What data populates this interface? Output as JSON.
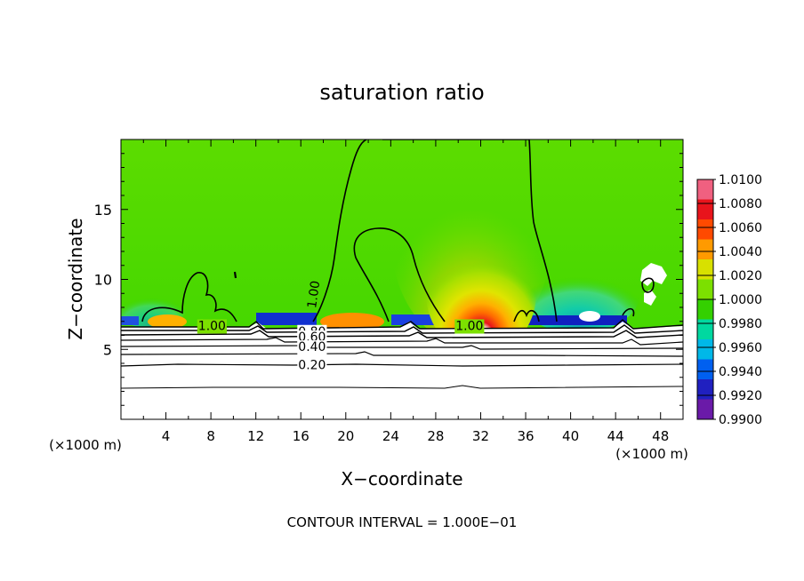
{
  "chart_data": {
    "type": "heatmap",
    "title": "saturation ratio",
    "xlabel": "X−coordinate",
    "ylabel": "Z−coordinate",
    "x_unit_left": "(×1000 m)",
    "x_unit_right": "(×1000 m)",
    "footer": "CONTOUR INTERVAL = 1.000E−01",
    "xlim": [
      0,
      50
    ],
    "ylim": [
      0,
      20
    ],
    "x_ticks": [
      4,
      8,
      12,
      16,
      20,
      24,
      28,
      32,
      36,
      40,
      44,
      48
    ],
    "y_ticks": [
      5,
      10,
      15
    ],
    "colorbar": {
      "min": 0.99,
      "max": 1.01,
      "tick_labels": [
        "1.0100",
        "1.0080",
        "1.0060",
        "1.0040",
        "1.0020",
        "1.0000",
        "0.9980",
        "0.9960",
        "0.9940",
        "0.9920",
        "0.9900"
      ],
      "colors": [
        "#f06080",
        "#e8141c",
        "#ff4a00",
        "#ff9a00",
        "#d8e000",
        "#7ce000",
        "#34d000",
        "#00d8a0",
        "#00b8e8",
        "#0060f0",
        "#2020c0",
        "#6a1aa8"
      ]
    },
    "contour_labels": [
      {
        "text": "1.00",
        "x": 8.1,
        "z": 6.7
      },
      {
        "text": "1.00",
        "x": 17.5,
        "z": 9.2
      },
      {
        "text": "1.00",
        "x": 31.0,
        "z": 6.7
      },
      {
        "text": "0.80",
        "x": 17.0,
        "z": 6.3
      },
      {
        "text": "0.60",
        "x": 17.0,
        "z": 5.9
      },
      {
        "text": "0.40",
        "x": 17.0,
        "z": 5.2
      },
      {
        "text": "0.20",
        "x": 17.0,
        "z": 3.9
      }
    ],
    "grid": false
  }
}
